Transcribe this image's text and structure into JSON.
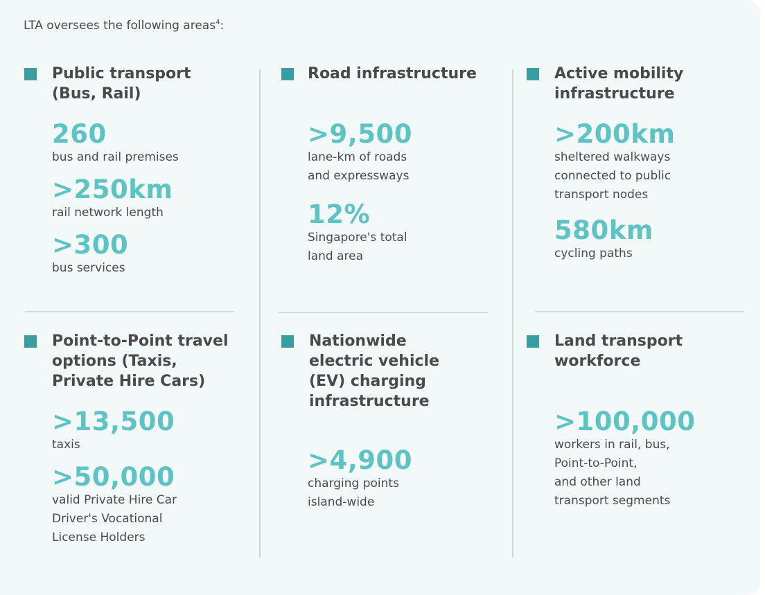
{
  "intro": {
    "text": "LTA oversees the following areas",
    "footnote": "4",
    "colon": ":"
  },
  "colors": {
    "accent": "#5dc4c3",
    "bullet": "#3a9ea0",
    "background": "#f3f9f8",
    "text": "#4a4a4a"
  },
  "areas": [
    {
      "title": "Public transport\n(Bus, Rail)",
      "stats": [
        {
          "value": "260",
          "label": "bus and rail premises"
        },
        {
          "value": ">250km",
          "label": "rail network length"
        },
        {
          "value": ">300",
          "label": "bus services"
        }
      ]
    },
    {
      "title": "Road infrastructure",
      "stats": [
        {
          "value": ">9,500",
          "label": "lane-km of roads\nand expressways"
        },
        {
          "value": "12%",
          "label": "Singapore's total\nland area"
        }
      ]
    },
    {
      "title": "Active mobility\ninfrastructure",
      "stats": [
        {
          "value": ">200km",
          "label": "sheltered walkways\nconnected to public\ntransport nodes"
        },
        {
          "value": "580km",
          "label": "cycling paths"
        }
      ]
    },
    {
      "title": "Point-to-Point travel\noptions (Taxis,\nPrivate Hire Cars)",
      "stats": [
        {
          "value": ">13,500",
          "label": "taxis"
        },
        {
          "value": ">50,000",
          "label": "valid Private Hire Car\nDriver's Vocational\nLicense Holders"
        }
      ]
    },
    {
      "title": "Nationwide\nelectric vehicle\n(EV) charging\ninfrastructure",
      "stats": [
        {
          "value": ">4,900",
          "label": "charging points\nisland-wide"
        }
      ]
    },
    {
      "title": "Land transport\nworkforce",
      "stats": [
        {
          "value": ">100,000",
          "label": "workers in rail, bus,\nPoint-to-Point,\nand other land\ntransport segments"
        }
      ]
    }
  ]
}
